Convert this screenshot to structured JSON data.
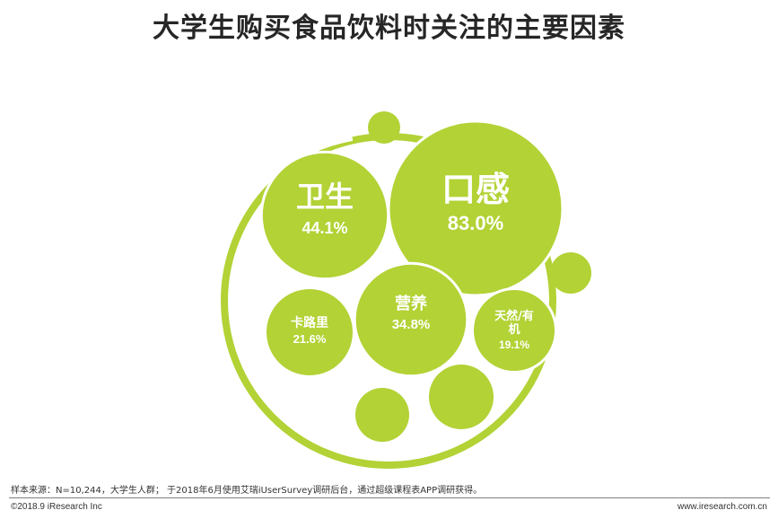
{
  "title": "大学生购买食品饮料时关注的主要因素",
  "chart_data": {
    "type": "bubble",
    "title": "大学生购买食品饮料时关注的主要因素",
    "unit": "%",
    "series": [
      {
        "name": "口感",
        "value": 83.0,
        "label": "83.0%"
      },
      {
        "name": "卫生",
        "value": 44.1,
        "label": "44.1%"
      },
      {
        "name": "营养",
        "value": 34.8,
        "label": "34.8%"
      },
      {
        "name": "卡路里",
        "value": 21.6,
        "label": "21.6%"
      },
      {
        "name": "天然/有机",
        "value": 19.1,
        "label": "19.1%"
      }
    ],
    "colors": {
      "bubble": "#b2d235",
      "text": "#ffffff"
    }
  },
  "footer": {
    "source": "样本来源：N=10,244，大学生人群； 于2018年6月使用艾瑞iUserSurvey调研后台，通过超级课程表APP调研获得。",
    "copyright": "©2018.9 iResearch Inc",
    "website": "www.iresearch.com.cn"
  }
}
